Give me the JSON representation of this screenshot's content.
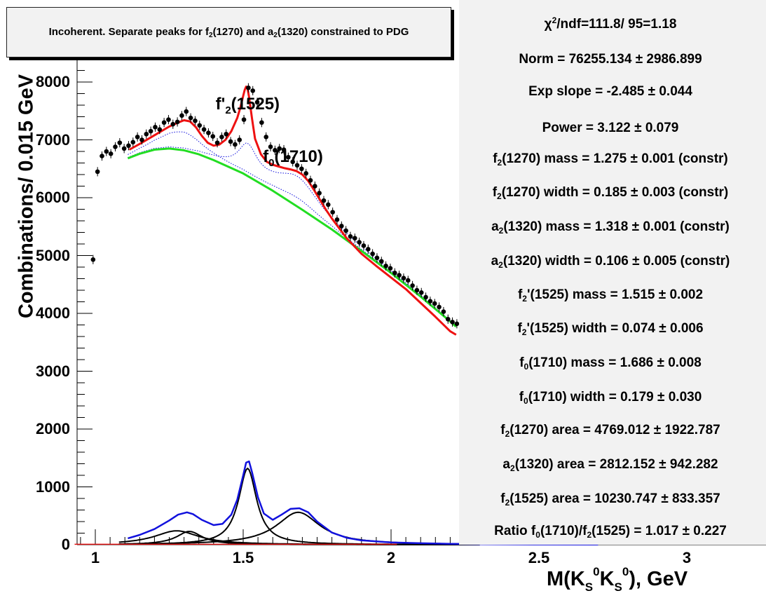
{
  "chart_data": {
    "type": "line",
    "title": "Incoherent. Separate peaks for f2(1270) and a2(1320) constrained to PDG",
    "title_parts": [
      "Incoherent. Separate peaks for f",
      "2",
      "(1270) and a",
      "2",
      "(1320) constrained to PDG"
    ],
    "xlabel_parts": [
      "M(K",
      "S",
      "0",
      "K",
      "S",
      "0",
      "), GeV"
    ],
    "ylabel": "Combinations/ 0.015 GeV",
    "xlim": [
      0.93,
      3.1
    ],
    "ylim": [
      0,
      8400
    ],
    "x_ticks": [
      "1",
      "1.5",
      "2",
      "2.5",
      "3"
    ],
    "y_ticks": [
      "0",
      "1000",
      "2000",
      "3000",
      "4000",
      "5000",
      "6000",
      "7000",
      "8000"
    ],
    "annotations": [
      {
        "base": "f'",
        "sub": "2",
        "rest": "(1525)",
        "x": 1.62,
        "y": 7760
      },
      {
        "base": "f",
        "sub": "0",
        "rest": "(1710)",
        "x": 1.78,
        "y": 6850
      }
    ],
    "data_points": {
      "x": [
        0.9925,
        1.0075,
        1.0225,
        1.0375,
        1.0525,
        1.0675,
        1.0825,
        1.0975,
        1.1125,
        1.1275,
        1.1425,
        1.1575,
        1.1725,
        1.1875,
        1.2025,
        1.2175,
        1.2325,
        1.2475,
        1.2625,
        1.2775,
        1.2925,
        1.3075,
        1.3225,
        1.3375,
        1.3525,
        1.3675,
        1.3825,
        1.3975,
        1.4125,
        1.4275,
        1.4425,
        1.4575,
        1.4725,
        1.4875,
        1.5025,
        1.5175,
        1.5325,
        1.5475,
        1.5625,
        1.5775,
        1.5925,
        1.6075,
        1.6225,
        1.6375,
        1.6525,
        1.6675,
        1.6825,
        1.6975,
        1.7125,
        1.7275,
        1.7425,
        1.7575,
        1.7725,
        1.7875,
        1.8025,
        1.8175,
        1.8325,
        1.8475,
        1.8625,
        1.8775,
        1.8925,
        1.9075,
        1.9225,
        1.9375,
        1.9525,
        1.9675,
        1.9825,
        1.9975,
        2.0125,
        2.0275,
        2.0425,
        2.0575,
        2.0725,
        2.0875,
        2.1025,
        2.1175,
        2.1325,
        2.1475,
        2.1625,
        2.1775,
        2.1925,
        2.2075,
        2.2225
      ],
      "y": [
        4930,
        6450,
        6720,
        6800,
        6760,
        6880,
        6950,
        6850,
        6900,
        6960,
        7050,
        7000,
        7100,
        7150,
        7220,
        7180,
        7300,
        7350,
        7270,
        7310,
        7420,
        7490,
        7380,
        7330,
        7250,
        7180,
        7120,
        7060,
        6950,
        7050,
        7100,
        6970,
        6920,
        7000,
        7350,
        7900,
        7850,
        7650,
        7300,
        7050,
        6880,
        6820,
        6850,
        6830,
        6700,
        6620,
        6560,
        6500,
        6420,
        6300,
        6200,
        6080,
        5950,
        5880,
        5750,
        5620,
        5510,
        5430,
        5330,
        5300,
        5230,
        5170,
        5110,
        5030,
        4960,
        4900,
        4820,
        4780,
        4700,
        4660,
        4610,
        4570,
        4480,
        4400,
        4360,
        4280,
        4210,
        4170,
        4110,
        4030,
        3900,
        3850,
        3820
      ],
      "errors": 80
    },
    "series": [
      {
        "name": "total fit",
        "color": "#ee1111",
        "x": [
          1.115,
          1.15,
          1.2,
          1.25,
          1.28,
          1.3,
          1.32,
          1.34,
          1.36,
          1.38,
          1.4,
          1.42,
          1.44,
          1.46,
          1.48,
          1.49,
          1.5,
          1.505,
          1.51,
          1.515,
          1.52,
          1.53,
          1.54,
          1.56,
          1.58,
          1.6,
          1.62,
          1.64,
          1.66,
          1.68,
          1.7,
          1.72,
          1.74,
          1.76,
          1.78,
          1.8,
          1.85,
          1.9,
          1.95,
          2.0,
          2.05,
          2.1,
          2.15,
          2.2,
          2.22
        ],
        "y": [
          6830,
          6930,
          7080,
          7230,
          7300,
          7340,
          7320,
          7220,
          7070,
          6950,
          6900,
          6920,
          7000,
          7150,
          7380,
          7550,
          7760,
          7860,
          7920,
          7880,
          7740,
          7360,
          7020,
          6750,
          6620,
          6570,
          6540,
          6510,
          6490,
          6460,
          6400,
          6290,
          6130,
          5960,
          5790,
          5640,
          5300,
          5030,
          4820,
          4620,
          4420,
          4180,
          3940,
          3690,
          3630
        ]
      },
      {
        "name": "background",
        "color": "#22dd22",
        "x": [
          1.11,
          1.15,
          1.2,
          1.25,
          1.3,
          1.35,
          1.4,
          1.5,
          1.6,
          1.7,
          1.8,
          1.9,
          2.0,
          2.1,
          2.2,
          2.22
        ],
        "y": [
          6680,
          6760,
          6830,
          6850,
          6820,
          6750,
          6650,
          6420,
          6120,
          5790,
          5450,
          5080,
          4700,
          4290,
          3860,
          3770
        ]
      },
      {
        "name": "signal sum",
        "color": "#1111dd",
        "x": [
          1.11,
          1.15,
          1.2,
          1.25,
          1.28,
          1.31,
          1.33,
          1.36,
          1.4,
          1.43,
          1.46,
          1.48,
          1.5,
          1.51,
          1.52,
          1.53,
          1.55,
          1.57,
          1.6,
          1.63,
          1.66,
          1.69,
          1.72,
          1.75,
          1.8,
          1.85,
          1.9,
          2.0,
          2.1,
          2.2,
          2.3,
          2.5,
          2.7
        ],
        "y": [
          110,
          170,
          270,
          420,
          520,
          560,
          530,
          430,
          340,
          360,
          520,
          780,
          1200,
          1420,
          1440,
          1250,
          820,
          540,
          430,
          520,
          620,
          630,
          560,
          400,
          210,
          120,
          75,
          40,
          25,
          15,
          10,
          5,
          3
        ]
      }
    ],
    "components": [
      {
        "name": "f2'(1525)",
        "peak": 1320,
        "center": 1.515,
        "gamma": 0.074
      },
      {
        "name": "f0(1710)",
        "peak": 560,
        "center": 1.686,
        "gamma": 0.179
      },
      {
        "name": "f2(1270)",
        "peak": 240,
        "center": 1.275,
        "gamma": 0.185
      },
      {
        "name": "a2(1320)",
        "peak": 230,
        "center": 1.318,
        "gamma": 0.106
      }
    ],
    "colors": {
      "fit": "#ee1111",
      "background": "#22dd22",
      "signal": "#1111dd",
      "components": "#000000",
      "envelope": "#1111dd",
      "markers": "#000000"
    }
  },
  "stats": [
    {
      "parts": [
        {
          "t": "χ"
        },
        {
          "sup": "2"
        },
        {
          "t": "/ndf=111.8/ 95=1.18"
        }
      ]
    },
    {
      "parts": [
        {
          "t": "Norm = 76255.134 ± 2986.899"
        }
      ]
    },
    {
      "parts": [
        {
          "t": "Exp slope = -2.485 ± 0.044"
        }
      ]
    },
    {
      "parts": [
        {
          "t": "Power = 3.122 ± 0.079"
        }
      ]
    },
    {
      "parts": [
        {
          "t": "f"
        },
        {
          "sub": "2"
        },
        {
          "t": "(1270) mass = 1.275 ± 0.001  (constr)"
        }
      ]
    },
    {
      "parts": [
        {
          "t": "f"
        },
        {
          "sub": "2"
        },
        {
          "t": "(1270) width = 0.185 ± 0.003  (constr)"
        }
      ]
    },
    {
      "parts": [
        {
          "t": "a"
        },
        {
          "sub": "2"
        },
        {
          "t": "(1320) mass = 1.318 ± 0.001  (constr)"
        }
      ]
    },
    {
      "parts": [
        {
          "t": "a"
        },
        {
          "sub": "2"
        },
        {
          "t": "(1320) width = 0.106 ± 0.005  (constr)"
        }
      ]
    },
    {
      "parts": [
        {
          "t": "f"
        },
        {
          "sub": "2"
        },
        {
          "t": "'(1525) mass = 1.515 ± 0.002"
        }
      ]
    },
    {
      "parts": [
        {
          "t": "f"
        },
        {
          "sub": "2"
        },
        {
          "t": "'(1525) width = 0.074 ± 0.006"
        }
      ]
    },
    {
      "parts": [
        {
          "t": "f"
        },
        {
          "sub": "0"
        },
        {
          "t": "(1710) mass = 1.686 ± 0.008"
        }
      ]
    },
    {
      "parts": [
        {
          "t": "f"
        },
        {
          "sub": "0"
        },
        {
          "t": "(1710) width = 0.179 ± 0.030"
        }
      ]
    },
    {
      "parts": [
        {
          "t": "f"
        },
        {
          "sub": "2"
        },
        {
          "t": "(1270) area = 4769.012 ± 1922.787"
        }
      ]
    },
    {
      "parts": [
        {
          "t": "a"
        },
        {
          "sub": "2"
        },
        {
          "t": "(1320) area = 2812.152 ± 942.282"
        }
      ]
    },
    {
      "parts": [
        {
          "t": "f"
        },
        {
          "sub": "2"
        },
        {
          "t": "(1525) area = 10230.747 ± 833.357"
        }
      ]
    },
    {
      "parts": [
        {
          "t": "Ratio f"
        },
        {
          "sub": "0"
        },
        {
          "t": "(1710)/f"
        },
        {
          "sub": "2"
        },
        {
          "t": "(1525) = 1.017 ± 0.227"
        }
      ]
    }
  ]
}
